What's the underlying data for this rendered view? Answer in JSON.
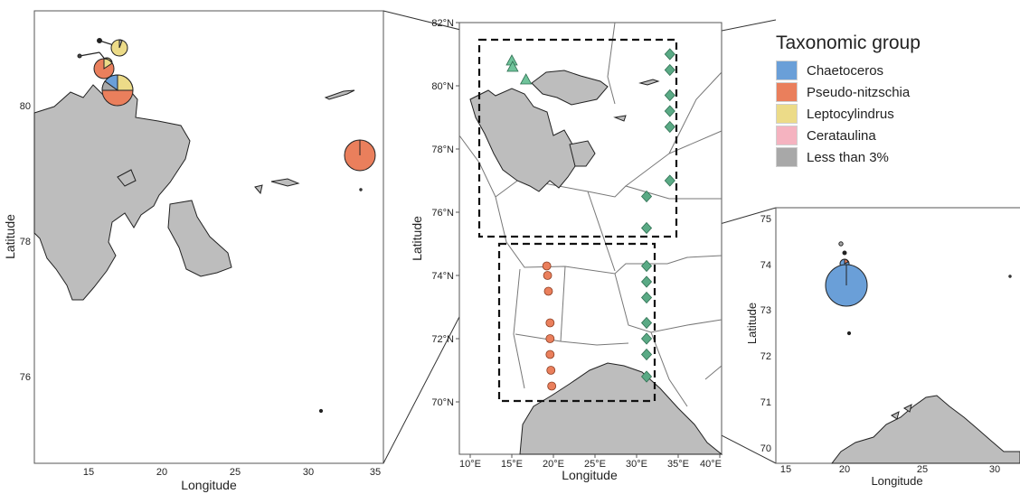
{
  "left_panel": {
    "xlabel": "Longitude",
    "ylabel": "Latitude",
    "x_ticks": [
      "15",
      "20",
      "25",
      "30",
      "35"
    ],
    "y_ticks": [
      "80",
      "78",
      "76"
    ]
  },
  "center_panel": {
    "xlabel": "Longitude",
    "ylabel": "Latitude",
    "x_ticks": [
      "10°E",
      "15°E",
      "20°E",
      "25°E",
      "30°E",
      "35°E",
      "40°E"
    ],
    "y_ticks": [
      "82°N",
      "80°N",
      "78°N",
      "76°N",
      "74°N",
      "72°N",
      "70°N"
    ]
  },
  "right_panel": {
    "xlabel": "Longitude",
    "ylabel": "Latitude",
    "x_ticks": [
      "15",
      "20",
      "25",
      "30"
    ],
    "y_ticks": [
      "75",
      "74",
      "73",
      "72",
      "71",
      "70"
    ]
  },
  "legend": {
    "title": "Taxonomic group",
    "items": [
      {
        "label": "Chaetoceros",
        "color": "#6a9fd8"
      },
      {
        "label": "Pseudo-nitzschia",
        "color": "#ea7f5c"
      },
      {
        "label": "Leptocylindrus",
        "color": "#ecdb88"
      },
      {
        "label": "Cerataulina",
        "color": "#f5b3c0"
      },
      {
        "label": "Less than 3%",
        "color": "#a8a8a8"
      }
    ]
  },
  "stations": {
    "triangles": [
      [
        15.0,
        80.8
      ],
      [
        15.1,
        80.6
      ],
      [
        16.7,
        80.2
      ]
    ],
    "diamonds": [
      [
        34.0,
        81.0
      ],
      [
        34.0,
        80.5
      ],
      [
        34.0,
        79.7
      ],
      [
        34.0,
        79.2
      ],
      [
        34.0,
        78.7
      ],
      [
        34.0,
        77.0
      ],
      [
        31.2,
        76.5
      ],
      [
        31.2,
        75.5
      ],
      [
        31.2,
        74.3
      ],
      [
        31.2,
        73.8
      ],
      [
        31.2,
        73.3
      ],
      [
        31.2,
        72.5
      ],
      [
        31.2,
        72.0
      ],
      [
        31.2,
        71.5
      ],
      [
        31.2,
        70.8
      ]
    ],
    "circles": [
      [
        19.2,
        74.3
      ],
      [
        19.3,
        74.0
      ],
      [
        19.4,
        73.5
      ],
      [
        19.6,
        72.5
      ],
      [
        19.6,
        72.0
      ],
      [
        19.6,
        71.5
      ],
      [
        19.7,
        71.0
      ],
      [
        19.8,
        70.5
      ]
    ]
  },
  "colors": {
    "land": "#bdbdbd",
    "triangle": "#6fc39a",
    "diamond": "#5aaa85",
    "circle": "#ea7f5c"
  }
}
